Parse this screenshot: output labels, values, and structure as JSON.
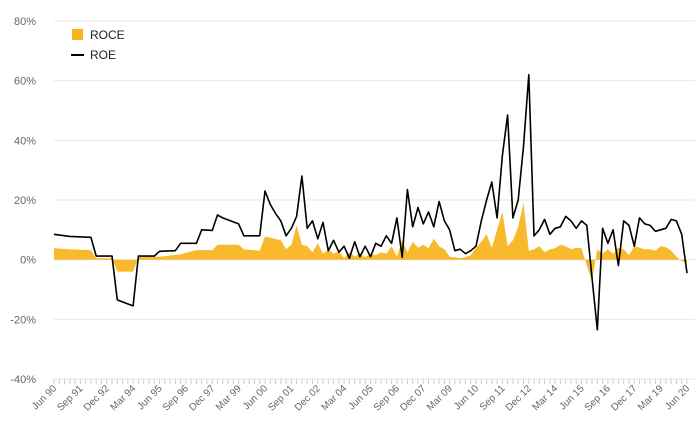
{
  "chart_data": {
    "type": "line",
    "title": "",
    "xlabel": "",
    "ylabel": "",
    "ylim": [
      -40,
      80
    ],
    "y_ticks": [
      -40,
      -20,
      0,
      20,
      40,
      60,
      80
    ],
    "y_tick_suffix": "%",
    "grid": "horizontal",
    "legend": "top-left",
    "x_range": [
      "1990-06",
      "2020-06"
    ],
    "x_tick_labels": [
      "Jun 90",
      "Sep 91",
      "Dec 92",
      "Mar 94",
      "Jun 95",
      "Sep 96",
      "Dec 97",
      "Mar 99",
      "Jun 00",
      "Sep 01",
      "Dec 02",
      "Mar 04",
      "Jun 05",
      "Sep 06",
      "Dec 07",
      "Mar 09",
      "Jun 10",
      "Sep 11",
      "Dec 12",
      "Mar 14",
      "Jun 15",
      "Sep 16",
      "Dec 17",
      "Mar 19",
      "Jun 20"
    ],
    "series": [
      {
        "name": "ROCE",
        "style": "area",
        "color": "#f7b31b",
        "points": [
          [
            "1990-06",
            3.8
          ],
          [
            "1991-03",
            3.5
          ],
          [
            "1992-03",
            3.2
          ],
          [
            "1992-06",
            0.5
          ],
          [
            "1993-03",
            0.5
          ],
          [
            "1993-06",
            -4
          ],
          [
            "1994-03",
            -4
          ],
          [
            "1994-06",
            0.8
          ],
          [
            "1995-06",
            1.0
          ],
          [
            "1996-06",
            1.8
          ],
          [
            "1997-03",
            3.2
          ],
          [
            "1997-12",
            3.2
          ],
          [
            "1998-03",
            5.0
          ],
          [
            "1999-03",
            5.0
          ],
          [
            "1999-06",
            3.5
          ],
          [
            "2000-03",
            3.0
          ],
          [
            "2000-06",
            7.8
          ],
          [
            "2001-03",
            6.5
          ],
          [
            "2001-06",
            3.5
          ],
          [
            "2001-09",
            5.0
          ],
          [
            "2001-12",
            11.5
          ],
          [
            "2002-03",
            5.0
          ],
          [
            "2002-06",
            4.5
          ],
          [
            "2002-09",
            2.5
          ],
          [
            "2002-12",
            5.5
          ],
          [
            "2003-03",
            2.0
          ],
          [
            "2003-06",
            3.5
          ],
          [
            "2003-09",
            2.0
          ],
          [
            "2003-12",
            2.8
          ],
          [
            "2004-03",
            0.5
          ],
          [
            "2004-06",
            2.5
          ],
          [
            "2004-09",
            1.0
          ],
          [
            "2004-12",
            2.0
          ],
          [
            "2005-03",
            0.8
          ],
          [
            "2005-06",
            2.0
          ],
          [
            "2005-09",
            1.5
          ],
          [
            "2005-12",
            2.5
          ],
          [
            "2006-03",
            2.0
          ],
          [
            "2006-06",
            4.5
          ],
          [
            "2006-09",
            1.0
          ],
          [
            "2006-12",
            6.5
          ],
          [
            "2007-03",
            2.5
          ],
          [
            "2007-06",
            6.0
          ],
          [
            "2007-09",
            4.0
          ],
          [
            "2007-12",
            5.0
          ],
          [
            "2008-03",
            3.8
          ],
          [
            "2008-06",
            7.0
          ],
          [
            "2008-09",
            4.5
          ],
          [
            "2008-12",
            3.5
          ],
          [
            "2009-03",
            1.0
          ],
          [
            "2009-06",
            0.8
          ],
          [
            "2009-09",
            0.5
          ],
          [
            "2009-12",
            0.8
          ],
          [
            "2010-03",
            1.5
          ],
          [
            "2010-06",
            4.0
          ],
          [
            "2010-09",
            6.0
          ],
          [
            "2010-12",
            8.5
          ],
          [
            "2011-03",
            4.0
          ],
          [
            "2011-06",
            10.0
          ],
          [
            "2011-09",
            16.0
          ],
          [
            "2011-12",
            4.5
          ],
          [
            "2012-03",
            6.5
          ],
          [
            "2012-06",
            11.0
          ],
          [
            "2012-09",
            19.0
          ],
          [
            "2012-12",
            3.0
          ],
          [
            "2013-03",
            3.5
          ],
          [
            "2013-06",
            4.5
          ],
          [
            "2013-09",
            2.5
          ],
          [
            "2013-12",
            3.5
          ],
          [
            "2014-03",
            3.8
          ],
          [
            "2014-06",
            5.0
          ],
          [
            "2014-09",
            4.5
          ],
          [
            "2014-12",
            3.5
          ],
          [
            "2015-03",
            4.0
          ],
          [
            "2015-06",
            3.8
          ],
          [
            "2015-09",
            -2.0
          ],
          [
            "2015-12",
            -7.0
          ],
          [
            "2016-03",
            3.5
          ],
          [
            "2016-06",
            2.0
          ],
          [
            "2016-09",
            3.5
          ],
          [
            "2016-12",
            2.0
          ],
          [
            "2017-03",
            4.0
          ],
          [
            "2017-06",
            3.5
          ],
          [
            "2017-09",
            1.5
          ],
          [
            "2017-12",
            4.5
          ],
          [
            "2018-03",
            4.0
          ],
          [
            "2018-06",
            3.5
          ],
          [
            "2018-09",
            3.5
          ],
          [
            "2018-12",
            3.0
          ],
          [
            "2019-03",
            4.5
          ],
          [
            "2019-06",
            4.2
          ],
          [
            "2019-09",
            3.0
          ],
          [
            "2019-12",
            1.0
          ],
          [
            "2020-03",
            -0.5
          ],
          [
            "2020-06",
            -1.0
          ]
        ]
      },
      {
        "name": "ROE",
        "style": "line",
        "color": "#000000",
        "points": [
          [
            "1990-06",
            8.5
          ],
          [
            "1991-03",
            7.8
          ],
          [
            "1992-03",
            7.5
          ],
          [
            "1992-06",
            1.2
          ],
          [
            "1993-03",
            1.2
          ],
          [
            "1993-06",
            -13.5
          ],
          [
            "1994-03",
            -15.5
          ],
          [
            "1994-06",
            1.2
          ],
          [
            "1995-03",
            1.2
          ],
          [
            "1995-06",
            2.8
          ],
          [
            "1996-03",
            3.0
          ],
          [
            "1996-06",
            5.5
          ],
          [
            "1997-03",
            5.5
          ],
          [
            "1997-06",
            10.0
          ],
          [
            "1997-12",
            9.8
          ],
          [
            "1998-03",
            15.0
          ],
          [
            "1998-06",
            14.0
          ],
          [
            "1999-03",
            12.0
          ],
          [
            "1999-06",
            8.0
          ],
          [
            "2000-03",
            8.0
          ],
          [
            "2000-06",
            23.0
          ],
          [
            "2000-09",
            18.5
          ],
          [
            "2000-12",
            15.5
          ],
          [
            "2001-03",
            13.0
          ],
          [
            "2001-06",
            8.0
          ],
          [
            "2001-09",
            10.5
          ],
          [
            "2001-12",
            14.5
          ],
          [
            "2002-03",
            28.0
          ],
          [
            "2002-06",
            10.5
          ],
          [
            "2002-09",
            13.0
          ],
          [
            "2002-12",
            7.0
          ],
          [
            "2003-03",
            12.5
          ],
          [
            "2003-06",
            3.0
          ],
          [
            "2003-09",
            6.5
          ],
          [
            "2003-12",
            2.5
          ],
          [
            "2004-03",
            4.5
          ],
          [
            "2004-06",
            0.5
          ],
          [
            "2004-09",
            6.0
          ],
          [
            "2004-12",
            1.0
          ],
          [
            "2005-03",
            4.5
          ],
          [
            "2005-06",
            1.0
          ],
          [
            "2005-09",
            5.5
          ],
          [
            "2005-12",
            4.5
          ],
          [
            "2006-03",
            8.0
          ],
          [
            "2006-06",
            5.5
          ],
          [
            "2006-09",
            14.0
          ],
          [
            "2006-12",
            0.8
          ],
          [
            "2007-03",
            23.5
          ],
          [
            "2007-06",
            11.0
          ],
          [
            "2007-09",
            17.5
          ],
          [
            "2007-12",
            12.0
          ],
          [
            "2008-03",
            16.0
          ],
          [
            "2008-06",
            11.0
          ],
          [
            "2008-09",
            19.5
          ],
          [
            "2008-12",
            13.0
          ],
          [
            "2009-03",
            10.0
          ],
          [
            "2009-06",
            3.0
          ],
          [
            "2009-09",
            3.5
          ],
          [
            "2009-12",
            2.0
          ],
          [
            "2010-03",
            3.0
          ],
          [
            "2010-06",
            4.5
          ],
          [
            "2010-09",
            13.0
          ],
          [
            "2010-12",
            20.0
          ],
          [
            "2011-03",
            26.0
          ],
          [
            "2011-06",
            14.0
          ],
          [
            "2011-09",
            35.0
          ],
          [
            "2011-12",
            48.5
          ],
          [
            "2012-03",
            14.0
          ],
          [
            "2012-06",
            20.0
          ],
          [
            "2012-09",
            38.0
          ],
          [
            "2012-12",
            62.0
          ],
          [
            "2013-03",
            8.0
          ],
          [
            "2013-06",
            10.0
          ],
          [
            "2013-09",
            13.5
          ],
          [
            "2013-12",
            8.5
          ],
          [
            "2014-03",
            10.5
          ],
          [
            "2014-06",
            11.0
          ],
          [
            "2014-09",
            14.5
          ],
          [
            "2014-12",
            13.0
          ],
          [
            "2015-03",
            10.5
          ],
          [
            "2015-06",
            13.0
          ],
          [
            "2015-09",
            11.5
          ],
          [
            "2015-12",
            -6.0
          ],
          [
            "2016-03",
            -23.5
          ],
          [
            "2016-06",
            10.5
          ],
          [
            "2016-09",
            5.5
          ],
          [
            "2016-12",
            10.0
          ],
          [
            "2017-03",
            -2.0
          ],
          [
            "2017-06",
            13.0
          ],
          [
            "2017-09",
            11.5
          ],
          [
            "2017-12",
            4.5
          ],
          [
            "2018-03",
            14.0
          ],
          [
            "2018-06",
            12.0
          ],
          [
            "2018-09",
            11.5
          ],
          [
            "2018-12",
            9.5
          ],
          [
            "2019-03",
            10.0
          ],
          [
            "2019-06",
            10.5
          ],
          [
            "2019-09",
            13.5
          ],
          [
            "2019-12",
            13.0
          ],
          [
            "2020-03",
            8.5
          ],
          [
            "2020-06",
            -4.5
          ]
        ]
      }
    ]
  }
}
